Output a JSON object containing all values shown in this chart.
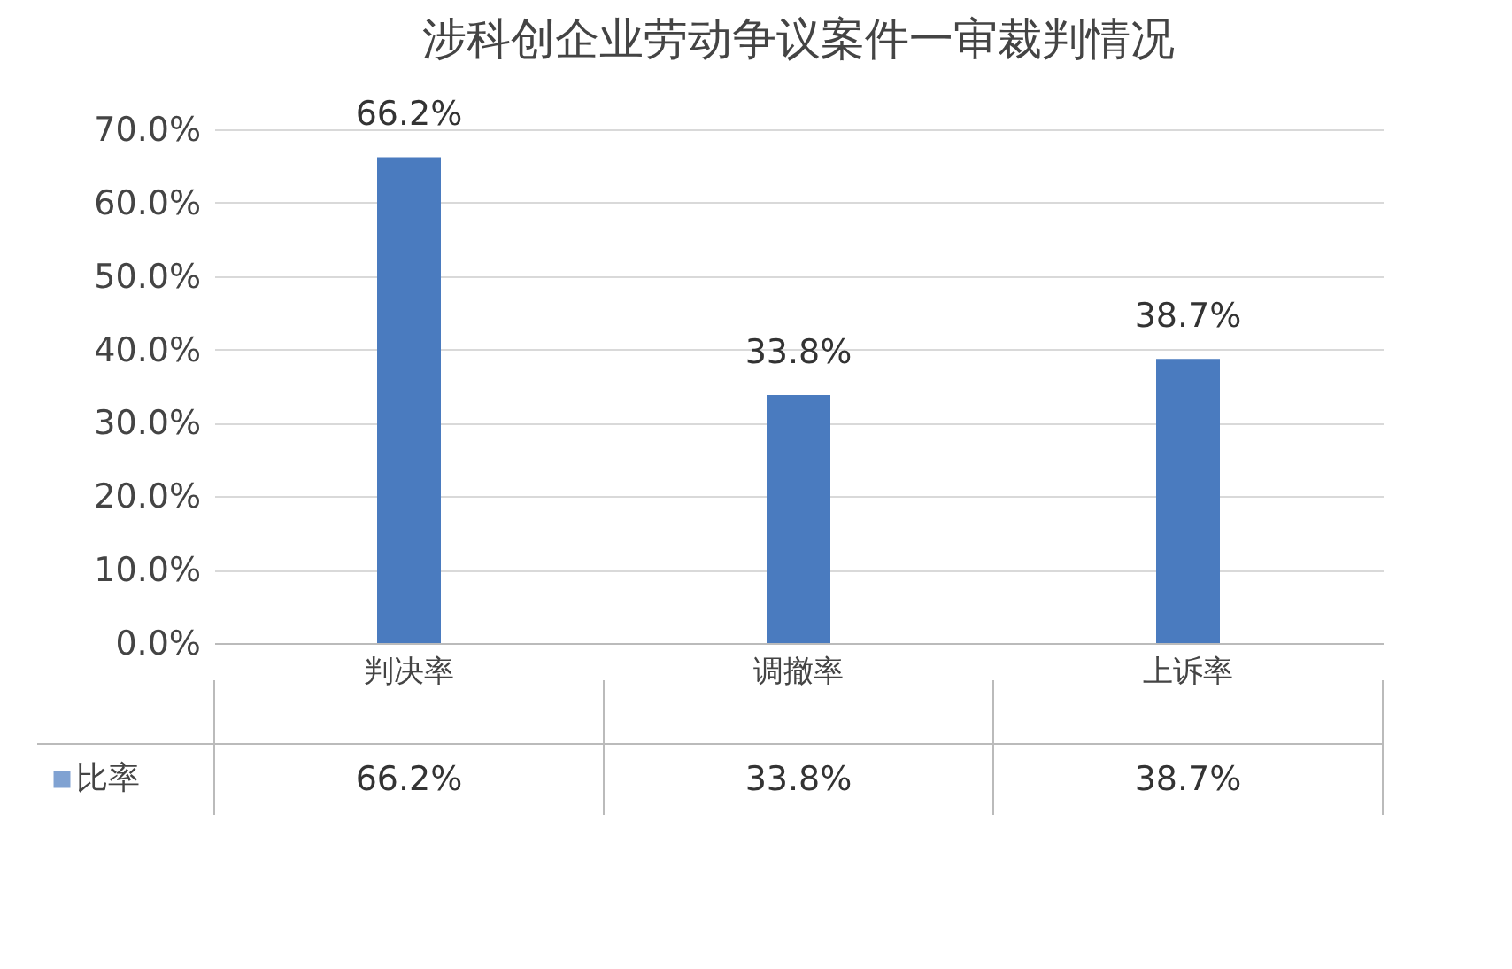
{
  "chart_data": {
    "type": "bar",
    "title": "涉科创企业劳动争议案件一审裁判情况",
    "categories": [
      "判决率",
      "调撤率",
      "上诉率"
    ],
    "series": [
      {
        "name": "比率",
        "color": "#4a7bbf",
        "values": [
          66.2,
          33.8,
          38.7
        ]
      }
    ],
    "value_labels": [
      "66.2%",
      "33.8%",
      "38.7%"
    ],
    "ylim": [
      0,
      70
    ],
    "yticks": [
      {
        "value": 0,
        "label": "0.0%"
      },
      {
        "value": 10,
        "label": "10.0%"
      },
      {
        "value": 20,
        "label": "20.0%"
      },
      {
        "value": 30,
        "label": "30.0%"
      },
      {
        "value": 40,
        "label": "40.0%"
      },
      {
        "value": 50,
        "label": "50.0%"
      },
      {
        "value": 60,
        "label": "60.0%"
      },
      {
        "value": 70,
        "label": "70.0%"
      }
    ],
    "grid": "y",
    "legend": "bottom"
  }
}
